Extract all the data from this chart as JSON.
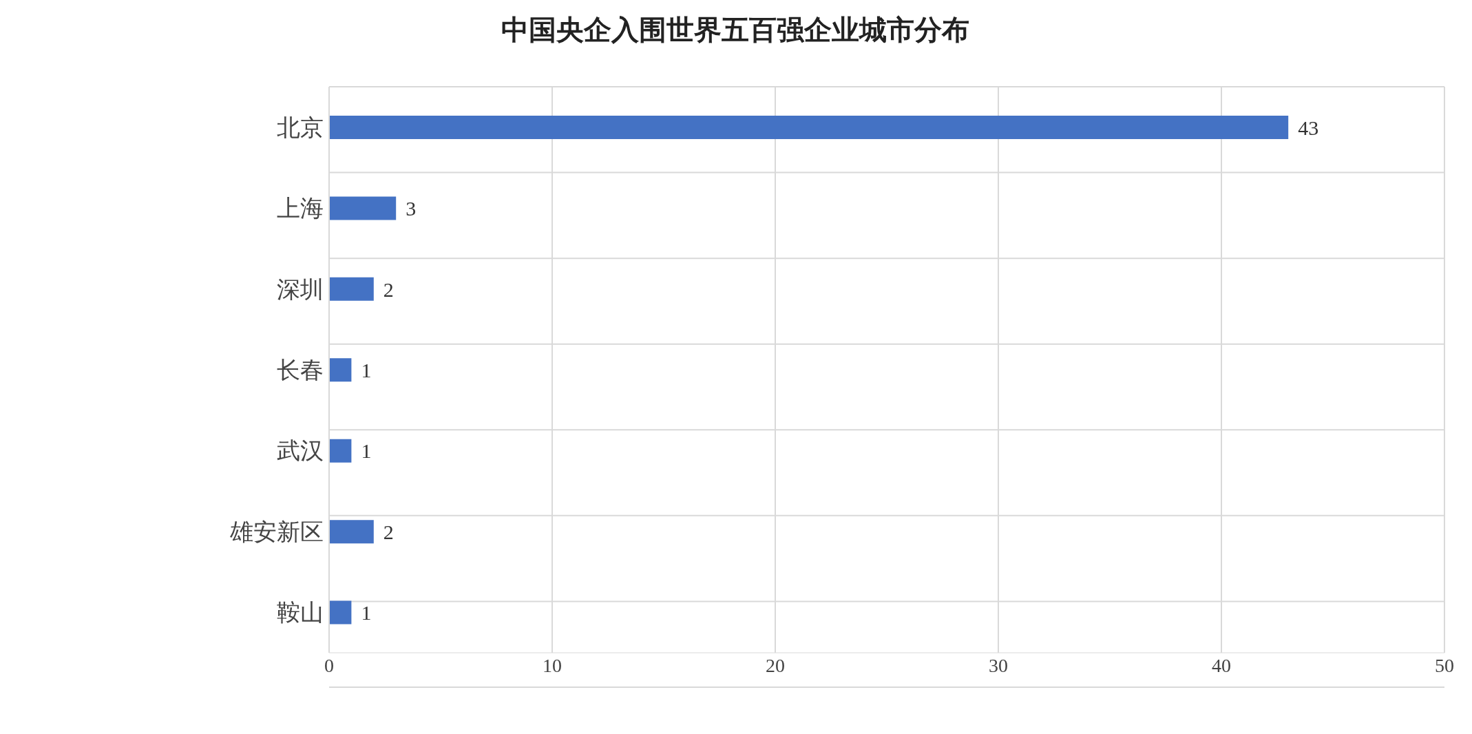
{
  "chart_data": {
    "type": "bar",
    "orientation": "horizontal",
    "title": "中国央企入围世界五百强企业城市分布",
    "categories": [
      "北京",
      "上海",
      "深圳",
      "长春",
      "武汉",
      "雄安新区",
      "鞍山"
    ],
    "values": [
      43,
      3,
      2,
      1,
      1,
      2,
      1
    ],
    "color": "#4472c4",
    "xlim": [
      0,
      50
    ],
    "xticks": [
      0,
      10,
      20,
      30,
      40,
      50
    ],
    "grid": true,
    "data_labels": true
  }
}
